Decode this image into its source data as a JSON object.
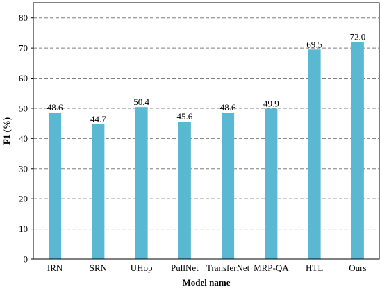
{
  "chart_data": {
    "type": "bar",
    "categories": [
      "IRN",
      "SRN",
      "UHop",
      "PullNet",
      "TransferNet",
      "MRP-QA",
      "HTL",
      "Ours"
    ],
    "values": [
      48.6,
      44.7,
      50.4,
      45.6,
      48.6,
      49.9,
      69.5,
      72.0
    ],
    "value_labels": [
      "48.6",
      "44.7",
      "50.4",
      "45.6",
      "48.6",
      "49.9",
      "69.5",
      "72.0"
    ],
    "xlabel": "Model name",
    "ylabel": "F1 (%)",
    "ylim": [
      0,
      85
    ],
    "yticks": [
      0,
      10,
      20,
      30,
      40,
      50,
      60,
      70,
      80
    ],
    "ytick_labels": [
      "0",
      "10",
      "20",
      "30",
      "40",
      "50",
      "60",
      "70",
      "80"
    ],
    "grid": true,
    "bar_color": "#5ab8d3"
  }
}
